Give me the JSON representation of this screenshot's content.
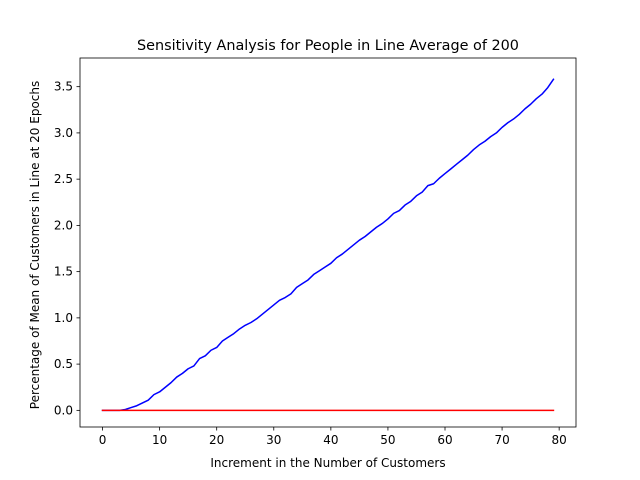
{
  "chart_data": {
    "type": "line",
    "title": "Sensitivity Analysis for People in Line Average of 200",
    "xlabel": "Increment in the Number of Customers",
    "ylabel": "Percentage of Mean of Customers in Line at 20 Epochs",
    "xlim": [
      -3.95,
      82.95
    ],
    "ylim": [
      -0.18,
      3.81
    ],
    "xticks": [
      0,
      10,
      20,
      30,
      40,
      50,
      60,
      70,
      80
    ],
    "yticks": [
      0.0,
      0.5,
      1.0,
      1.5,
      2.0,
      2.5,
      3.0,
      3.5
    ],
    "xtick_labels": [
      "0",
      "10",
      "20",
      "30",
      "40",
      "50",
      "60",
      "70",
      "80"
    ],
    "ytick_labels": [
      "0.0",
      "0.5",
      "1.0",
      "1.5",
      "2.0",
      "2.5",
      "3.0",
      "3.5"
    ],
    "grid": false,
    "series": [
      {
        "color": "#0000ff",
        "x": [
          0,
          1,
          2,
          3,
          4,
          5,
          6,
          7,
          8,
          9,
          10,
          11,
          12,
          13,
          14,
          15,
          16,
          17,
          18,
          19,
          20,
          21,
          22,
          23,
          24,
          25,
          26,
          27,
          28,
          29,
          30,
          31,
          32,
          33,
          34,
          35,
          36,
          37,
          38,
          39,
          40,
          41,
          42,
          43,
          44,
          45,
          46,
          47,
          48,
          49,
          50,
          51,
          52,
          53,
          54,
          55,
          56,
          57,
          58,
          59,
          60,
          61,
          62,
          63,
          64,
          65,
          66,
          67,
          68,
          69,
          70,
          71,
          72,
          73,
          74,
          75,
          76,
          77,
          78,
          79
        ],
        "y": [
          0.0,
          0.0,
          0.0,
          0.0,
          0.01,
          0.03,
          0.05,
          0.08,
          0.11,
          0.17,
          0.2,
          0.25,
          0.3,
          0.36,
          0.4,
          0.45,
          0.48,
          0.56,
          0.59,
          0.65,
          0.68,
          0.75,
          0.79,
          0.83,
          0.88,
          0.92,
          0.95,
          0.99,
          1.04,
          1.09,
          1.14,
          1.19,
          1.22,
          1.26,
          1.33,
          1.37,
          1.41,
          1.47,
          1.51,
          1.55,
          1.59,
          1.65,
          1.69,
          1.74,
          1.79,
          1.84,
          1.88,
          1.93,
          1.98,
          2.02,
          2.07,
          2.13,
          2.16,
          2.22,
          2.26,
          2.32,
          2.36,
          2.43,
          2.45,
          2.51,
          2.56,
          2.61,
          2.66,
          2.71,
          2.76,
          2.82,
          2.87,
          2.91,
          2.96,
          3.0,
          3.06,
          3.11,
          3.15,
          3.2,
          3.26,
          3.31,
          3.37,
          3.42,
          3.49,
          3.58
        ]
      },
      {
        "color": "#ff0000",
        "x": [
          0,
          79
        ],
        "y": [
          0.0,
          0.0
        ]
      }
    ]
  }
}
